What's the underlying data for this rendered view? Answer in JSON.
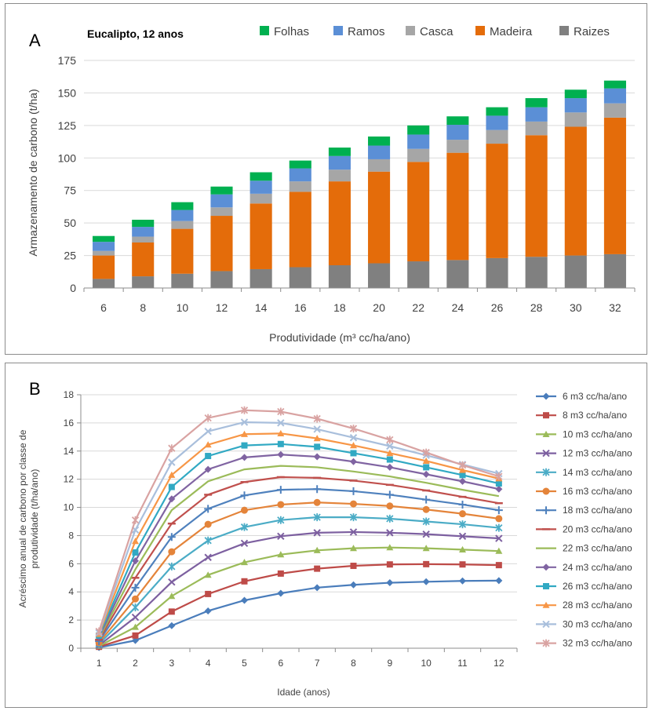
{
  "chart_data": [
    {
      "type": "bar",
      "stacked": true,
      "panel_label": "A",
      "subtitle": "Eucalipto, 12 anos",
      "xlabel": "Produtividade (m³ cc/ha/ano)",
      "ylabel": "Armazenamento de carbono (t/ha)",
      "ylim": [
        0,
        175
      ],
      "yticks": [
        0,
        25,
        50,
        75,
        100,
        125,
        150,
        175
      ],
      "categories": [
        "6",
        "8",
        "10",
        "12",
        "14",
        "16",
        "18",
        "20",
        "22",
        "24",
        "26",
        "28",
        "30",
        "32"
      ],
      "legend_position": "top",
      "series": [
        {
          "name": "Raizes",
          "color": "#808080",
          "values": [
            7,
            9,
            11,
            13,
            14.5,
            16,
            17.5,
            19,
            20.5,
            21.5,
            23,
            24,
            25,
            26
          ]
        },
        {
          "name": "Madeira",
          "color": "#e46c0a",
          "values": [
            18,
            26,
            34.5,
            42.5,
            50.5,
            58,
            64.5,
            70.5,
            76.5,
            82.5,
            88,
            93.5,
            99,
            105
          ]
        },
        {
          "name": "Casca",
          "color": "#a6a6a6",
          "values": [
            3.5,
            4.5,
            6,
            6.5,
            7.5,
            8,
            9,
            9.5,
            10,
            10,
            10.5,
            10.5,
            11,
            11
          ]
        },
        {
          "name": "Ramos",
          "color": "#5b8fd6",
          "values": [
            7,
            7.5,
            8.5,
            10,
            10,
            10,
            10.5,
            10.5,
            11,
            11.5,
            11,
            11,
            11,
            11.5
          ]
        },
        {
          "name": "Folhas",
          "color": "#00b050",
          "values": [
            4.5,
            5.5,
            6,
            6,
            6.5,
            6,
            6.5,
            7,
            7,
            6.5,
            6.5,
            7,
            6.5,
            6
          ]
        }
      ]
    },
    {
      "type": "line",
      "panel_label": "B",
      "xlabel": "Idade (anos)",
      "ylabel_line1": "Acréscimo anual de carbono por classe de",
      "ylabel_line2": "produtividade  (t/ha/ano)",
      "ylim": [
        0,
        18
      ],
      "yticks": [
        0,
        2,
        4,
        6,
        8,
        10,
        12,
        14,
        16,
        18
      ],
      "x": [
        1,
        2,
        3,
        4,
        5,
        6,
        7,
        8,
        9,
        10,
        11,
        12
      ],
      "legend_position": "right",
      "series": [
        {
          "name": "6 m3 cc/ha/ano",
          "color": "#4a7dbb",
          "marker": "diamond",
          "values": [
            0.05,
            0.55,
            1.6,
            2.65,
            3.4,
            3.9,
            4.3,
            4.5,
            4.65,
            4.72,
            4.78,
            4.8
          ]
        },
        {
          "name": "8 m3 cc/ha/ano",
          "color": "#be4b48",
          "marker": "square",
          "values": [
            0.1,
            0.9,
            2.6,
            3.85,
            4.75,
            5.3,
            5.65,
            5.85,
            5.95,
            5.97,
            5.95,
            5.9
          ]
        },
        {
          "name": "10 m3 cc/ha/ano",
          "color": "#9bbb59",
          "marker": "triangle",
          "values": [
            0.15,
            1.5,
            3.7,
            5.2,
            6.1,
            6.65,
            6.95,
            7.1,
            7.15,
            7.1,
            7.0,
            6.9
          ]
        },
        {
          "name": "12 m3 cc/ha/ano",
          "color": "#7d60a0",
          "marker": "x",
          "values": [
            0.2,
            2.2,
            4.7,
            6.45,
            7.45,
            7.95,
            8.2,
            8.25,
            8.2,
            8.1,
            7.95,
            7.8
          ]
        },
        {
          "name": "14 m3 cc/ha/ano",
          "color": "#4bacc6",
          "marker": "star",
          "values": [
            0.3,
            2.9,
            5.8,
            7.65,
            8.6,
            9.1,
            9.3,
            9.3,
            9.2,
            9.0,
            8.8,
            8.55
          ]
        },
        {
          "name": "16 m3 cc/ha/ano",
          "color": "#e4843a",
          "marker": "circle",
          "values": [
            0.4,
            3.5,
            6.85,
            8.8,
            9.8,
            10.2,
            10.35,
            10.25,
            10.1,
            9.85,
            9.55,
            9.2
          ]
        },
        {
          "name": "18 m3 cc/ha/ano",
          "color": "#4f81bd",
          "marker": "plus",
          "values": [
            0.5,
            4.3,
            7.9,
            9.9,
            10.85,
            11.25,
            11.3,
            11.15,
            10.9,
            10.55,
            10.2,
            9.8
          ]
        },
        {
          "name": "20 m3 cc/ha/ano",
          "color": "#c0504d",
          "marker": "dash",
          "values": [
            0.6,
            5.0,
            8.85,
            10.9,
            11.8,
            12.15,
            12.1,
            11.9,
            11.6,
            11.2,
            10.75,
            10.3
          ]
        },
        {
          "name": "22 m3 cc/ha/ano",
          "color": "#9bbb59",
          "marker": "none",
          "values": [
            0.7,
            5.6,
            9.8,
            11.85,
            12.7,
            12.95,
            12.85,
            12.55,
            12.2,
            11.75,
            11.25,
            10.8
          ]
        },
        {
          "name": "24 m3 cc/ha/ano",
          "color": "#8064a2",
          "marker": "diamond",
          "values": [
            0.8,
            6.2,
            10.6,
            12.7,
            13.55,
            13.75,
            13.6,
            13.25,
            12.85,
            12.35,
            11.85,
            11.3
          ]
        },
        {
          "name": "26 m3 cc/ha/ano",
          "color": "#31a9c3",
          "marker": "square",
          "values": [
            0.9,
            6.8,
            11.45,
            13.65,
            14.4,
            14.5,
            14.3,
            13.85,
            13.4,
            12.85,
            12.3,
            11.7
          ]
        },
        {
          "name": "28 m3 cc/ha/ano",
          "color": "#f79646",
          "marker": "triangle",
          "values": [
            1.0,
            7.6,
            12.3,
            14.45,
            15.2,
            15.25,
            14.9,
            14.4,
            13.85,
            13.3,
            12.65,
            12.05
          ]
        },
        {
          "name": "30 m3 cc/ha/ano",
          "color": "#a9bfdc",
          "marker": "x",
          "values": [
            1.1,
            8.4,
            13.2,
            15.4,
            16.05,
            16.0,
            15.55,
            14.95,
            14.35,
            13.7,
            13.05,
            12.4
          ]
        },
        {
          "name": "32 m3 cc/ha/ano",
          "color": "#d9a3a2",
          "marker": "star",
          "values": [
            1.2,
            9.1,
            14.2,
            16.35,
            16.9,
            16.8,
            16.3,
            15.6,
            14.8,
            13.9,
            13.0,
            12.2
          ]
        }
      ]
    }
  ]
}
